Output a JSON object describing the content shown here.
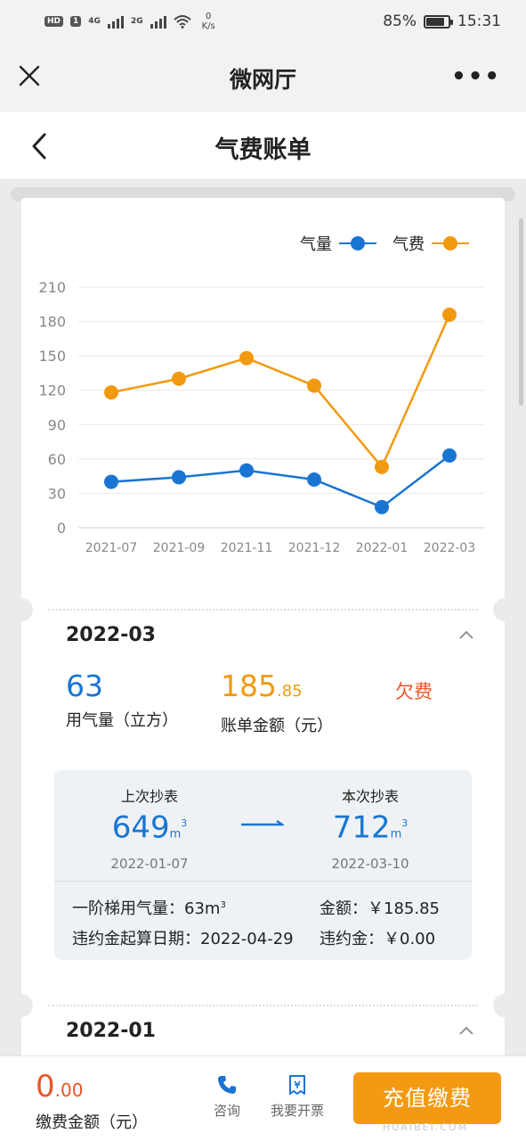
{
  "status_bar": {
    "hd": "HD",
    "sim": "1",
    "net1": "4G",
    "net2": "2G",
    "speed_value": "0",
    "speed_unit": "K/s",
    "battery": "85%",
    "battery_level": 0.85,
    "time": "15:31"
  },
  "app_bar": {
    "title": "微网厅",
    "more_label": "•••"
  },
  "page": {
    "title": "气费账单"
  },
  "legend": {
    "gas": "气量",
    "fee": "气费"
  },
  "colors": {
    "gas": "#1a75d2",
    "fee": "#f19a10",
    "owe": "#e8562a"
  },
  "chart_data": {
    "type": "line",
    "categories": [
      "2021-07",
      "2021-09",
      "2021-11",
      "2021-12",
      "2022-01",
      "2022-03"
    ],
    "series": [
      {
        "name": "气量",
        "values": [
          40,
          44,
          50,
          42,
          18,
          63
        ]
      },
      {
        "name": "气费",
        "values": [
          118,
          130,
          148,
          124,
          53,
          185.85
        ]
      }
    ],
    "yticks": [
      0,
      30,
      60,
      90,
      120,
      150,
      180,
      210
    ],
    "ylim": [
      0,
      210
    ],
    "grid": true,
    "legend_position": "top-right"
  },
  "current": {
    "period": "2022-03",
    "gas_int": "63",
    "gas_label": "用气量（立方）",
    "amount_int": "185",
    "amount_dec": ".85",
    "amount_label": "账单金额（元）",
    "status": "欠费",
    "prev_caption": "上次抄表",
    "prev_value": "649",
    "prev_date": "2022-01-07",
    "this_caption": "本次抄表",
    "this_value": "712",
    "this_date": "2022-03-10",
    "unit": "m",
    "unit_sup": "3",
    "tier_label": "一阶梯用气量：63m",
    "tier_sup": "3",
    "amount_row": "金额：￥185.85",
    "penalty_start": "违约金起算日期：2022-04-29",
    "penalty": "违约金：￥0.00"
  },
  "next": {
    "period": "2022-01"
  },
  "bottom": {
    "pay_int": "0",
    "pay_dec": ".00",
    "pay_label": "缴费金额（元）",
    "consult": "咨询",
    "invoice": "我要开票",
    "recharge": "充值缴费",
    "watermark": "HUAIBEI.COM"
  }
}
